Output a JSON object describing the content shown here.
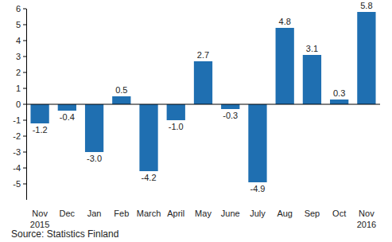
{
  "chart_data": {
    "type": "bar",
    "categories": [
      "Nov\n2015",
      "Dec",
      "Jan",
      "Feb",
      "March",
      "April",
      "May",
      "June",
      "July",
      "Aug",
      "Sep",
      "Oct",
      "Nov\n2016"
    ],
    "values": [
      -1.2,
      -0.4,
      -3.0,
      0.5,
      -4.2,
      -1.0,
      2.7,
      -0.3,
      -4.9,
      4.8,
      3.1,
      0.3,
      5.8
    ],
    "value_labels": [
      "-1.2",
      "-0.4",
      "-3.0",
      "0.5",
      "-4.2",
      "-1.0",
      "2.7",
      "-0.3",
      "-4.9",
      "4.8",
      "3.1",
      "0.3",
      "5.8"
    ],
    "color": "#1f6fb1",
    "ylim": [
      -6,
      6
    ],
    "yticks": [
      -5,
      -4,
      -3,
      -2,
      -1,
      0,
      1,
      2,
      3,
      4,
      5,
      6
    ],
    "grid": false,
    "data_labels": true,
    "source": "Source: Statistics Finland"
  }
}
